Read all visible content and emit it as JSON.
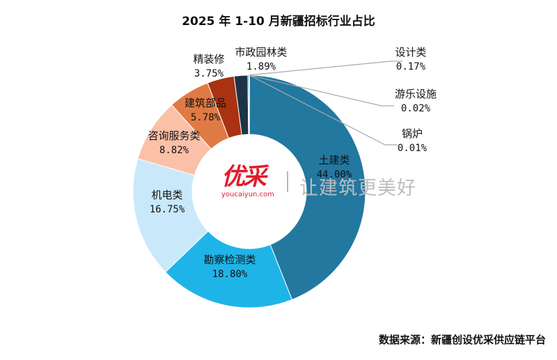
{
  "title": "2025 年 1-10 月新疆招标行业占比",
  "source": "数据来源：新疆创设优采供应链平台",
  "watermark": {
    "logo_text": "优采",
    "logo_url_text": "youcaiyun.com",
    "slogan": "让建筑更美好"
  },
  "chart_data": {
    "type": "pie",
    "variant": "donut",
    "slices": [
      {
        "name": "土建类",
        "value": 44.0,
        "label": "44.00%",
        "color": "#22789f"
      },
      {
        "name": "勘察检测类",
        "value": 18.8,
        "label": "18.80%",
        "color": "#1fb4e8"
      },
      {
        "name": "机电类",
        "value": 16.75,
        "label": "16.75%",
        "color": "#c9e9fb"
      },
      {
        "name": "咨询服务类",
        "value": 8.82,
        "label": "8.82%",
        "color": "#fbc0a8"
      },
      {
        "name": "建筑部品",
        "value": 5.78,
        "label": "5.78%",
        "color": "#e07a45"
      },
      {
        "name": "精装修",
        "value": 3.75,
        "label": "3.75%",
        "color": "#a83211"
      },
      {
        "name": "市政园林类",
        "value": 1.89,
        "label": "1.89%",
        "color": "#1e3446"
      },
      {
        "name": "设计类",
        "value": 0.17,
        "label": "0.17%",
        "color": "#2a6f95"
      },
      {
        "name": "游乐设施",
        "value": 0.02,
        "label": "0.02%",
        "color": "#2a6f95"
      },
      {
        "name": "锅炉",
        "value": 0.01,
        "label": "0.01%",
        "color": "#2a6f95"
      }
    ],
    "start_angle": "12 o'clock",
    "direction": "clockwise",
    "legend": "none"
  }
}
